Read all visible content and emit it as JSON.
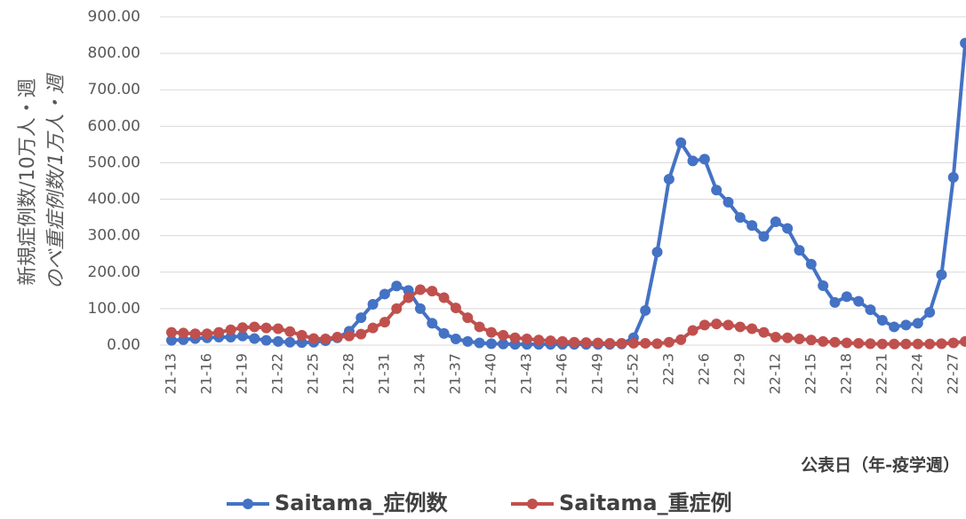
{
  "chart_data": {
    "type": "line",
    "y_label": [
      "新規症例数/10万人・週",
      "のべ重症例数/1万人・週"
    ],
    "x_label": "公表日（年-疫学週）",
    "categories": [
      "21-13",
      null,
      null,
      "21-16",
      null,
      null,
      "21-19",
      null,
      null,
      "21-22",
      null,
      null,
      "21-25",
      null,
      null,
      "21-28",
      null,
      null,
      "21-31",
      null,
      null,
      "21-34",
      null,
      null,
      "21-37",
      null,
      null,
      "21-40",
      null,
      null,
      "21-43",
      null,
      null,
      "21-46",
      null,
      null,
      "21-49",
      null,
      null,
      "21-52",
      null,
      null,
      "22-3",
      null,
      null,
      "22-6",
      null,
      null,
      "22-9",
      null,
      null,
      "22-12",
      null,
      null,
      "22-15",
      null,
      null,
      "22-18",
      null,
      null,
      "22-21",
      null,
      null,
      "22-24",
      null,
      null,
      "22-27",
      null
    ],
    "series": [
      {
        "name": "Saitama_症例数",
        "color": "#4472c4",
        "values": [
          13,
          15,
          18,
          20,
          22,
          22,
          25,
          18,
          13,
          10,
          8,
          7,
          8,
          12,
          20,
          38,
          75,
          112,
          140,
          162,
          150,
          100,
          60,
          32,
          17,
          10,
          6,
          4,
          3,
          2,
          2,
          2,
          2,
          2,
          2,
          2,
          2,
          2,
          3,
          20,
          95,
          255,
          455,
          555,
          505,
          510,
          425,
          392,
          350,
          328,
          298,
          338,
          320,
          260,
          222,
          163,
          117,
          133,
          120,
          97,
          68,
          50,
          55,
          60,
          90,
          193,
          460,
          828
        ]
      },
      {
        "name": "Saitama_重症例",
        "color": "#c0504d",
        "values": [
          35,
          33,
          31,
          31,
          35,
          42,
          48,
          50,
          47,
          45,
          37,
          27,
          18,
          17,
          22,
          25,
          30,
          47,
          63,
          100,
          130,
          152,
          148,
          130,
          102,
          75,
          50,
          35,
          27,
          20,
          17,
          14,
          12,
          10,
          8,
          7,
          6,
          5,
          5,
          5,
          5,
          4,
          8,
          15,
          40,
          55,
          58,
          55,
          50,
          45,
          35,
          22,
          20,
          17,
          14,
          10,
          8,
          6,
          5,
          4,
          3,
          3,
          3,
          3,
          3,
          4,
          6,
          10
        ]
      }
    ],
    "ylim": [
      0,
      900
    ],
    "yticks": [
      {
        "value": 0,
        "label": "0.00"
      },
      {
        "value": 100,
        "label": "100.00"
      },
      {
        "value": 200,
        "label": "200.00"
      },
      {
        "value": 300,
        "label": "300.00"
      },
      {
        "value": 400,
        "label": "400.00"
      },
      {
        "value": 500,
        "label": "500.00"
      },
      {
        "value": 600,
        "label": "600.00"
      },
      {
        "value": 700,
        "label": "700.00"
      },
      {
        "value": 800,
        "label": "800.00"
      },
      {
        "value": 900,
        "label": "900.00"
      }
    ],
    "grid": true,
    "legend": "bottom"
  }
}
